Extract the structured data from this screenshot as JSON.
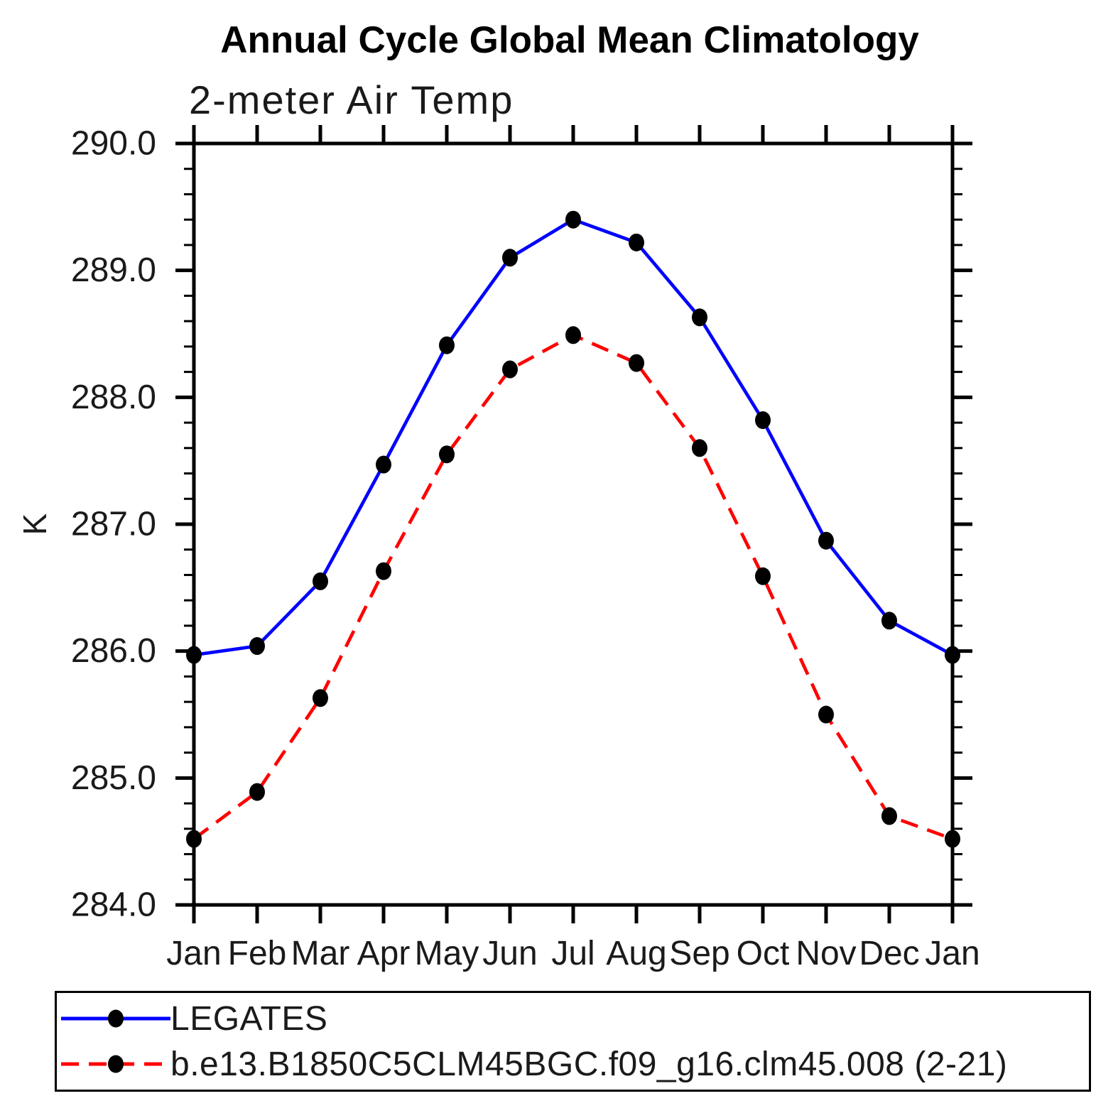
{
  "chart_data": {
    "type": "line",
    "title": "Annual Cycle Global Mean Climatology",
    "subtitle": "2-meter Air Temp",
    "ylabel": "K",
    "categories": [
      "Jan",
      "Feb",
      "Mar",
      "Apr",
      "May",
      "Jun",
      "Jul",
      "Aug",
      "Sep",
      "Oct",
      "Nov",
      "Dec",
      "Jan"
    ],
    "ylim": [
      284.0,
      290.0
    ],
    "ytick_values": [
      290.0,
      289.0,
      288.0,
      287.0,
      286.0,
      285.0,
      284.0
    ],
    "ytick_labels": [
      "290.0",
      "289.0",
      "288.0",
      "287.0",
      "286.0",
      "285.0",
      "284.0"
    ],
    "y_minor_step": 0.2,
    "grid": false,
    "legend_position": "bottom",
    "series": [
      {
        "name": "LEGATES",
        "color": "#0000ff",
        "line_style": "solid",
        "marker": "filled-circle",
        "marker_color": "#000000",
        "values": [
          285.97,
          286.04,
          286.55,
          287.47,
          288.41,
          289.1,
          289.4,
          289.22,
          288.63,
          287.82,
          286.87,
          286.24,
          285.97
        ]
      },
      {
        "name": "b.e13.B1850C5CLM45BGC.f09_g16.clm45.008 (2-21)",
        "color": "#ff0000",
        "line_style": "dashed",
        "marker": "filled-circle",
        "marker_color": "#000000",
        "values": [
          284.52,
          284.89,
          285.63,
          286.63,
          287.55,
          288.22,
          288.49,
          288.27,
          287.6,
          286.59,
          285.5,
          284.7,
          284.52
        ]
      }
    ]
  },
  "colors": {
    "background": "#ffffff",
    "axis": "#000000",
    "series1": "#0000ff",
    "series2": "#ff0000",
    "marker": "#000000"
  }
}
